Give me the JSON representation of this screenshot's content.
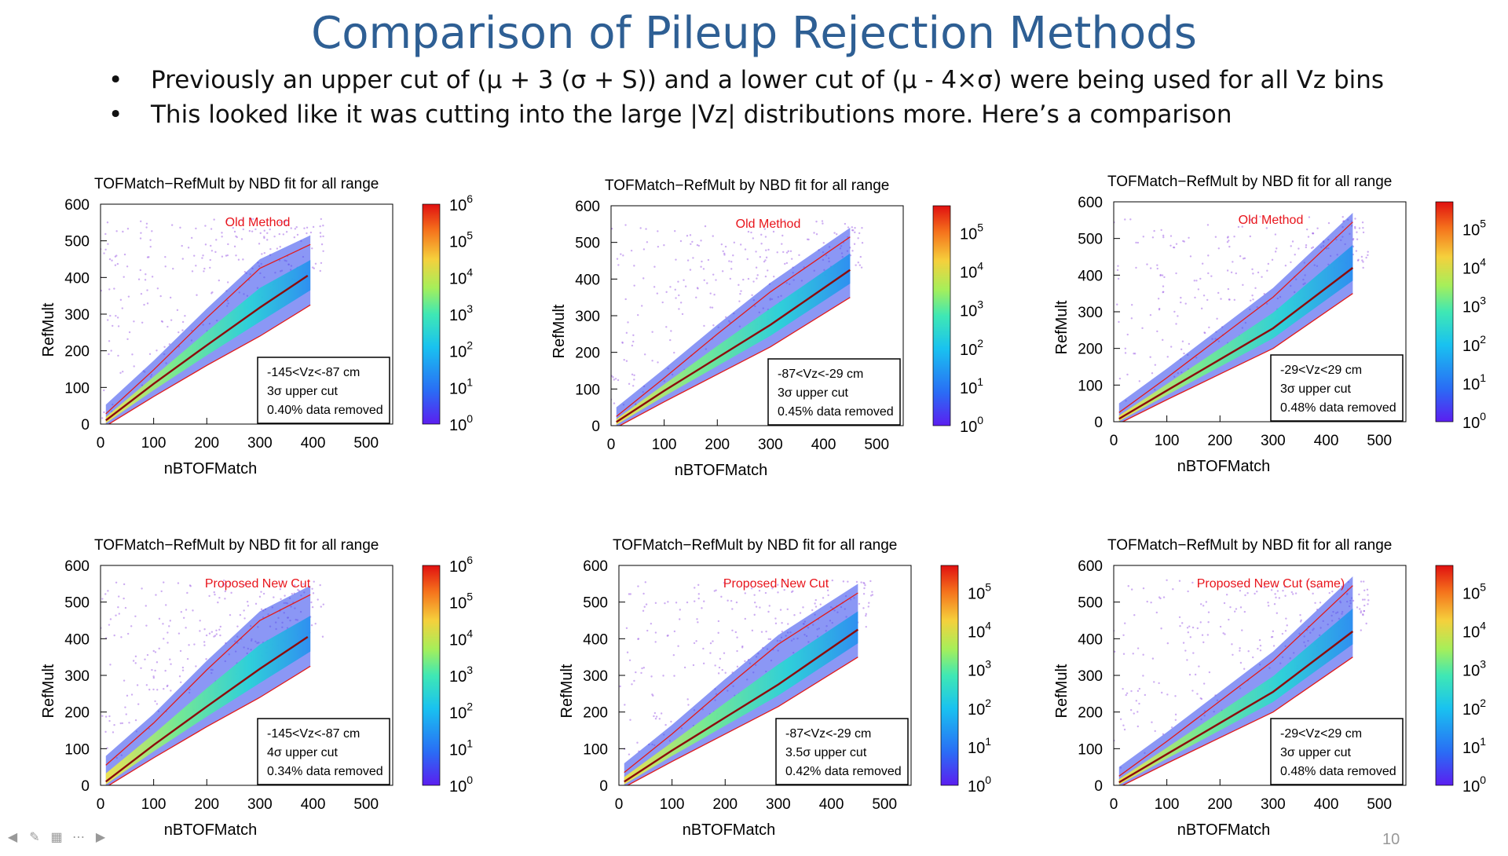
{
  "slide": {
    "title": "Comparison of Pileup Rejection Methods",
    "bullets": [
      "Previously an upper cut of (μ + 3 (σ + S)) and a lower cut of (μ - 4×σ) were being used for all Vz bins",
      "This looked like it was cutting into the large |Vz| distributions more. Here’s a comparison"
    ],
    "bullet_glyph": "•",
    "page_number": "10",
    "nav_icons": [
      "back-arrow-icon",
      "pen-icon",
      "slide-grid-icon",
      "more-options-icon",
      "forward-arrow-icon"
    ]
  },
  "chart_data": [
    {
      "type": "heatmap",
      "title": "TOFMatch−RefMult by NBD fit for all range",
      "xlabel": "nBTOFMatch",
      "ylabel": "RefMult",
      "xlim": [
        0,
        550
      ],
      "ylim": [
        0,
        600
      ],
      "xticks": [
        "0",
        "100",
        "200",
        "300",
        "400",
        "500"
      ],
      "yticks": [
        "0",
        "100",
        "200",
        "300",
        "400",
        "500",
        "600"
      ],
      "colorbar": {
        "scale": "log",
        "ticks": [
          {
            "base": "10",
            "exp": "0"
          },
          {
            "base": "10",
            "exp": "1"
          },
          {
            "base": "10",
            "exp": "2"
          },
          {
            "base": "10",
            "exp": "3"
          },
          {
            "base": "10",
            "exp": "4"
          },
          {
            "base": "10",
            "exp": "5"
          },
          {
            "base": "10",
            "exp": "6"
          }
        ]
      },
      "annotation": "Old Method",
      "annotation_color": "#e8141b",
      "legend_box": [
        "-145<Vz<-87 cm",
        "3σ upper cut",
        "0.40% data removed"
      ],
      "mean_curve": {
        "x": [
          10,
          100,
          200,
          300,
          390
        ],
        "y": [
          10,
          110,
          215,
          318,
          405
        ]
      },
      "upper_curve": {
        "x": [
          10,
          100,
          200,
          300,
          395
        ],
        "y": [
          28,
          148,
          290,
          425,
          490
        ]
      },
      "lower_curve": {
        "x": [
          10,
          100,
          200,
          300,
          395
        ],
        "y": [
          -5,
          75,
          160,
          240,
          325
        ]
      }
    },
    {
      "type": "heatmap",
      "title": "TOFMatch−RefMult by NBD fit for all range",
      "xlabel": "nBTOFMatch",
      "ylabel": "RefMult",
      "xlim": [
        0,
        550
      ],
      "ylim": [
        0,
        600
      ],
      "xticks": [
        "0",
        "100",
        "200",
        "300",
        "400",
        "500"
      ],
      "yticks": [
        "0",
        "100",
        "200",
        "300",
        "400",
        "500",
        "600"
      ],
      "colorbar": {
        "scale": "log",
        "ticks": [
          {
            "base": "10",
            "exp": "0"
          },
          {
            "base": "10",
            "exp": "1"
          },
          {
            "base": "10",
            "exp": "2"
          },
          {
            "base": "10",
            "exp": "3"
          },
          {
            "base": "10",
            "exp": "4"
          },
          {
            "base": "10",
            "exp": "5"
          }
        ]
      },
      "annotation": "Old Method",
      "annotation_color": "#e8141b",
      "legend_box": [
        "-87<Vz<-29 cm",
        "3σ upper cut",
        "0.45% data removed"
      ],
      "mean_curve": {
        "x": [
          10,
          100,
          200,
          300,
          450
        ],
        "y": [
          10,
          95,
          185,
          275,
          425
        ]
      },
      "upper_curve": {
        "x": [
          10,
          100,
          200,
          300,
          450
        ],
        "y": [
          25,
          130,
          250,
          365,
          515
        ]
      },
      "lower_curve": {
        "x": [
          10,
          100,
          200,
          300,
          450
        ],
        "y": [
          -5,
          65,
          140,
          215,
          350
        ]
      }
    },
    {
      "type": "heatmap",
      "title": "TOFMatch−RefMult by NBD fit for all range",
      "xlabel": "nBTOFMatch",
      "ylabel": "RefMult",
      "xlim": [
        0,
        550
      ],
      "ylim": [
        0,
        600
      ],
      "xticks": [
        "0",
        "100",
        "200",
        "300",
        "400",
        "500"
      ],
      "yticks": [
        "0",
        "100",
        "200",
        "300",
        "400",
        "500",
        "600"
      ],
      "colorbar": {
        "scale": "log",
        "ticks": [
          {
            "base": "10",
            "exp": "0"
          },
          {
            "base": "10",
            "exp": "1"
          },
          {
            "base": "10",
            "exp": "2"
          },
          {
            "base": "10",
            "exp": "3"
          },
          {
            "base": "10",
            "exp": "4"
          },
          {
            "base": "10",
            "exp": "5"
          }
        ]
      },
      "annotation": "Old Method",
      "annotation_color": "#e8141b",
      "legend_box": [
        "-29<Vz<29 cm",
        "3σ upper cut",
        "0.48% data removed"
      ],
      "mean_curve": {
        "x": [
          10,
          100,
          200,
          300,
          450
        ],
        "y": [
          8,
          85,
          170,
          255,
          420
        ]
      },
      "upper_curve": {
        "x": [
          10,
          100,
          200,
          300,
          450
        ],
        "y": [
          25,
          120,
          230,
          340,
          545
        ]
      },
      "lower_curve": {
        "x": [
          10,
          100,
          200,
          300,
          450
        ],
        "y": [
          -5,
          60,
          130,
          200,
          350
        ]
      }
    },
    {
      "type": "heatmap",
      "title": "TOFMatch−RefMult by NBD fit for all range",
      "xlabel": "nBTOFMatch",
      "ylabel": "RefMult",
      "xlim": [
        0,
        550
      ],
      "ylim": [
        0,
        600
      ],
      "xticks": [
        "0",
        "100",
        "200",
        "300",
        "400",
        "500"
      ],
      "yticks": [
        "0",
        "100",
        "200",
        "300",
        "400",
        "500",
        "600"
      ],
      "colorbar": {
        "scale": "log",
        "ticks": [
          {
            "base": "10",
            "exp": "0"
          },
          {
            "base": "10",
            "exp": "1"
          },
          {
            "base": "10",
            "exp": "2"
          },
          {
            "base": "10",
            "exp": "3"
          },
          {
            "base": "10",
            "exp": "4"
          },
          {
            "base": "10",
            "exp": "5"
          },
          {
            "base": "10",
            "exp": "6"
          }
        ]
      },
      "annotation": "Proposed New Cut",
      "annotation_color": "#e8141b",
      "legend_box": [
        "-145<Vz<-87 cm",
        "4σ upper cut",
        "0.34% data removed"
      ],
      "mean_curve": {
        "x": [
          10,
          100,
          200,
          300,
          390
        ],
        "y": [
          10,
          110,
          215,
          318,
          405
        ]
      },
      "upper_curve": {
        "x": [
          10,
          100,
          200,
          300,
          395
        ],
        "y": [
          55,
          170,
          315,
          450,
          520
        ]
      },
      "lower_curve": {
        "x": [
          10,
          100,
          200,
          300,
          395
        ],
        "y": [
          -5,
          75,
          160,
          240,
          325
        ]
      }
    },
    {
      "type": "heatmap",
      "title": "TOFMatch−RefMult by NBD fit for all range",
      "xlabel": "nBTOFMatch",
      "ylabel": "RefMult",
      "xlim": [
        0,
        550
      ],
      "ylim": [
        0,
        600
      ],
      "xticks": [
        "0",
        "100",
        "200",
        "300",
        "400",
        "500"
      ],
      "yticks": [
        "0",
        "100",
        "200",
        "300",
        "400",
        "500",
        "600"
      ],
      "colorbar": {
        "scale": "log",
        "ticks": [
          {
            "base": "10",
            "exp": "0"
          },
          {
            "base": "10",
            "exp": "1"
          },
          {
            "base": "10",
            "exp": "2"
          },
          {
            "base": "10",
            "exp": "3"
          },
          {
            "base": "10",
            "exp": "4"
          },
          {
            "base": "10",
            "exp": "5"
          }
        ]
      },
      "annotation": "Proposed New Cut",
      "annotation_color": "#e8141b",
      "legend_box": [
        "-87<Vz<-29 cm",
        "3.5σ upper cut",
        "0.42% data removed"
      ],
      "mean_curve": {
        "x": [
          10,
          100,
          200,
          300,
          450
        ],
        "y": [
          10,
          95,
          185,
          275,
          425
        ]
      },
      "upper_curve": {
        "x": [
          10,
          100,
          200,
          300,
          450
        ],
        "y": [
          35,
          140,
          265,
          385,
          525
        ]
      },
      "lower_curve": {
        "x": [
          10,
          100,
          200,
          300,
          450
        ],
        "y": [
          -5,
          65,
          140,
          215,
          350
        ]
      }
    },
    {
      "type": "heatmap",
      "title": "TOFMatch−RefMult by NBD fit for all range",
      "xlabel": "nBTOFMatch",
      "ylabel": "RefMult",
      "xlim": [
        0,
        550
      ],
      "ylim": [
        0,
        600
      ],
      "xticks": [
        "0",
        "100",
        "200",
        "300",
        "400",
        "500"
      ],
      "yticks": [
        "0",
        "100",
        "200",
        "300",
        "400",
        "500",
        "600"
      ],
      "colorbar": {
        "scale": "log",
        "ticks": [
          {
            "base": "10",
            "exp": "0"
          },
          {
            "base": "10",
            "exp": "1"
          },
          {
            "base": "10",
            "exp": "2"
          },
          {
            "base": "10",
            "exp": "3"
          },
          {
            "base": "10",
            "exp": "4"
          },
          {
            "base": "10",
            "exp": "5"
          }
        ]
      },
      "annotation": "Proposed New Cut (same)",
      "annotation_color": "#e8141b",
      "legend_box": [
        "-29<Vz<29 cm",
        "3σ upper cut",
        "0.48% data removed"
      ],
      "mean_curve": {
        "x": [
          10,
          100,
          200,
          300,
          450
        ],
        "y": [
          8,
          85,
          170,
          255,
          420
        ]
      },
      "upper_curve": {
        "x": [
          10,
          100,
          200,
          300,
          450
        ],
        "y": [
          25,
          120,
          230,
          340,
          545
        ]
      },
      "lower_curve": {
        "x": [
          10,
          100,
          200,
          300,
          450
        ],
        "y": [
          -5,
          60,
          130,
          200,
          350
        ]
      }
    }
  ]
}
